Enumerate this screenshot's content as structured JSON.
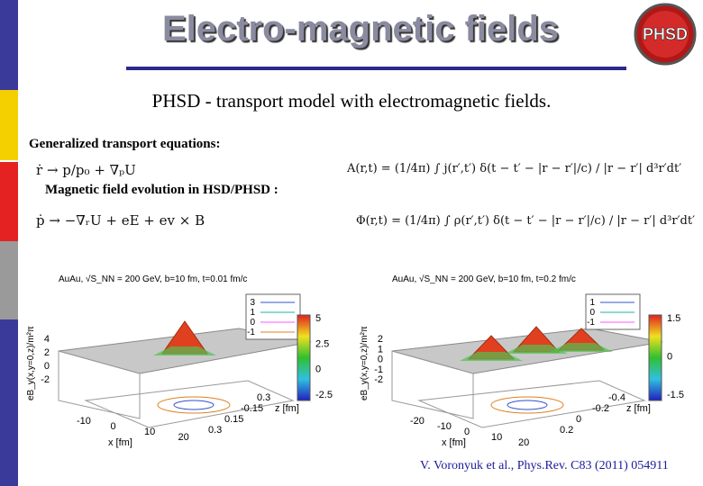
{
  "header": {
    "title": "Electro-magnetic fields",
    "logo": "PHSD",
    "subtitle": "PHSD - transport model with electromagnetic fields."
  },
  "body": {
    "transport_heading": "Generalized transport equations:",
    "transport_equations": [
      "ṙ → p/p₀ + ∇ₚU",
      "ṗ → −∇ᵣU + eE + ev × B"
    ],
    "field_heading": "Magnetic field evolution in HSD/PHSD :",
    "field_equations": [
      "A(r,t) = (1/4π) ∫ j(r′,t′) δ(t − t′ − |r − r′|/c) / |r − r′| d³r′dt′",
      "Φ(r,t) = (1/4π) ∫ ρ(r′,t′) δ(t − t′ − |r − r′|/c) / |r − r′| d³r′dt′"
    ]
  },
  "plots": [
    {
      "heading": "AuAu, √S_NN = 200 GeV, b=10 fm, t=0.01 fm/c",
      "y_label": "eB_y(x,y=0,z)/m²π",
      "x_label": "x [fm]",
      "z_label": "z [fm]",
      "legend": [
        "3",
        "1",
        "0",
        "-1"
      ],
      "colorbar": [
        "5",
        "2.5",
        "0",
        "-2.5"
      ],
      "value_ticks": [
        "4",
        "2",
        "0",
        "-2"
      ],
      "x_ticks": [
        "-10",
        "0",
        "10",
        "20"
      ],
      "z_ticks": [
        "0.3",
        "-0.15",
        "0.15",
        "0.3"
      ]
    },
    {
      "heading": "AuAu, √S_NN = 200 GeV, b=10 fm, t=0.2 fm/c",
      "y_label": "eB_y(x,y=0,z)/m²π",
      "x_label": "x [fm]",
      "z_label": "z [fm]",
      "legend": [
        "1",
        "0",
        "-1"
      ],
      "colorbar": [
        "1.5",
        "0",
        "-1.5"
      ],
      "value_ticks": [
        "2",
        "1",
        "0",
        "-1",
        "-2"
      ],
      "x_ticks": [
        "-20",
        "-10",
        "0",
        "10",
        "20"
      ],
      "z_ticks": [
        "-0.4",
        "-0.2",
        "0",
        "0.2"
      ]
    }
  ],
  "footer": {
    "citation": "V. Voronyuk et al., Phys.Rev. C83 (2011) 054911"
  }
}
